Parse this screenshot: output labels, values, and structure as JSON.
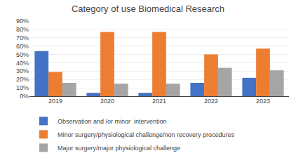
{
  "chart_data": {
    "type": "bar",
    "title": "Category of use Biomedical Research",
    "categories": [
      "2019",
      "2020",
      "2021",
      "2022",
      "2023"
    ],
    "series": [
      {
        "name": "Observation and /or minor  intervention",
        "color": "#4472C4",
        "values": [
          54,
          4,
          4,
          16,
          22
        ]
      },
      {
        "name": "Minor surgery/physiological challenge/non recovery procedures",
        "color": "#ED7D31",
        "values": [
          29,
          77,
          77,
          50,
          57
        ]
      },
      {
        "name": "Major surgery/major physiological challenge",
        "color": "#A5A5A5",
        "values": [
          16,
          15,
          15,
          34,
          31
        ]
      }
    ],
    "ylim": [
      0,
      90
    ],
    "yticks": [
      {
        "value": 0,
        "label": "0%"
      },
      {
        "value": 10,
        "label": "10%"
      },
      {
        "value": 20,
        "label": "20%"
      },
      {
        "value": 30,
        "label": "30%"
      },
      {
        "value": 40,
        "label": "40%"
      },
      {
        "value": 50,
        "label": "50%"
      },
      {
        "value": 60,
        "label": "60%"
      },
      {
        "value": 70,
        "label": "70%"
      },
      {
        "value": 80,
        "label": "80%"
      },
      {
        "value": 90,
        "label": "90%"
      }
    ],
    "grid": true,
    "legend": "bottom"
  }
}
